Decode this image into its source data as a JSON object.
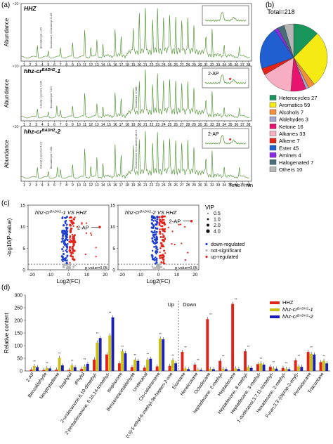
{
  "panel_labels": {
    "a": "(a)",
    "b": "(b)",
    "c": "(c)",
    "d": "(d)"
  },
  "chart_data": [
    {
      "id": "a",
      "type": "line",
      "ylabel": "Abundance",
      "xlabel": "Time / min",
      "x_ticks": [
        1,
        2,
        3,
        4,
        5,
        6,
        7,
        8,
        9,
        10,
        11,
        12,
        13,
        14,
        15,
        16,
        17,
        18,
        19,
        20,
        21,
        22,
        23,
        24,
        25,
        26,
        27,
        28,
        29,
        30,
        31,
        32,
        33,
        34,
        35,
        36,
        37,
        38
      ],
      "xlim": [
        0.5,
        38.5
      ],
      "ylim": [
        0,
        5
      ],
      "exponent_label": "×10⁷",
      "inset_annotation": "2-AP",
      "traces": [
        {
          "name": "HHZ",
          "peaks": [
            [
              3.2,
              1.2
            ],
            [
              5.0,
              0.6
            ],
            [
              7.0,
              0.9
            ],
            [
              9.0,
              1.4
            ],
            [
              11.0,
              2.6
            ],
            [
              12.0,
              1.0
            ],
            [
              13.0,
              1.6
            ],
            [
              14.0,
              1.2
            ],
            [
              16.0,
              2.7
            ],
            [
              17.0,
              1.7
            ],
            [
              19.0,
              2.3
            ],
            [
              20.0,
              3.7
            ],
            [
              21.0,
              4.2
            ],
            [
              22.2,
              2.9
            ],
            [
              23.0,
              3.9
            ],
            [
              24.0,
              3.3
            ],
            [
              25.0,
              3.6
            ],
            [
              26.0,
              3.2
            ],
            [
              27.0,
              2.8
            ],
            [
              28.0,
              3.6
            ],
            [
              29.0,
              2.3
            ],
            [
              31.0,
              1.9
            ],
            [
              32.0,
              2.6
            ],
            [
              34.0,
              1.3
            ],
            [
              36.5,
              1.0
            ]
          ],
          "annotations": [
            "Benzaldehyde 1.2/3",
            "Nonadecane, 6-Nonadecyl 10.6/8"
          ]
        },
        {
          "name": "hhz-cr^{BADH2}-1",
          "peaks": [
            [
              3.2,
              0.9
            ],
            [
              5.0,
              0.5
            ],
            [
              6.4,
              1.1
            ],
            [
              7.0,
              0.7
            ],
            [
              9.0,
              1.1
            ],
            [
              11.0,
              2.4
            ],
            [
              13.0,
              1.3
            ],
            [
              14.0,
              1.0
            ],
            [
              16.0,
              2.5
            ],
            [
              17.0,
              1.6
            ],
            [
              19.0,
              2.5
            ],
            [
              20.0,
              3.1
            ],
            [
              21.0,
              4.3
            ],
            [
              22.2,
              2.6
            ],
            [
              23.0,
              3.6
            ],
            [
              24.0,
              3.2
            ],
            [
              25.0,
              3.4
            ],
            [
              26.0,
              3.0
            ],
            [
              27.0,
              2.7
            ],
            [
              28.0,
              3.4
            ],
            [
              29.0,
              2.2
            ],
            [
              31.0,
              1.6
            ],
            [
              32.0,
              2.5
            ],
            [
              34.0,
              1.1
            ],
            [
              36.5,
              0.9
            ]
          ],
          "annotations": [
            "2-Acetyl-1-pyrroline 5.245",
            "Benzaldehyde 7.203",
            "Nonadecane 10.882"
          ]
        },
        {
          "name": "hhz-cr^{BADH2}-2",
          "peaks": [
            [
              3.2,
              1.1
            ],
            [
              5.0,
              0.6
            ],
            [
              6.5,
              1.0
            ],
            [
              7.0,
              0.8
            ],
            [
              9.0,
              1.3
            ],
            [
              11.0,
              2.9
            ],
            [
              12.0,
              1.2
            ],
            [
              13.0,
              2.0
            ],
            [
              14.0,
              1.4
            ],
            [
              16.0,
              3.4
            ],
            [
              17.0,
              2.0
            ],
            [
              19.0,
              2.8
            ],
            [
              20.0,
              3.3
            ],
            [
              21.0,
              4.2
            ],
            [
              22.2,
              2.8
            ],
            [
              23.0,
              3.8
            ],
            [
              24.0,
              3.3
            ],
            [
              25.0,
              3.5
            ],
            [
              26.0,
              3.1
            ],
            [
              27.0,
              2.8
            ],
            [
              28.0,
              3.6
            ],
            [
              29.0,
              2.3
            ],
            [
              31.0,
              1.8
            ],
            [
              32.0,
              2.6
            ],
            [
              34.0,
              1.2
            ],
            [
              36.5,
              1.0
            ]
          ],
          "annotations": [
            "2-Acetyl-1-pyrroline 5.1-5",
            "Benzaldehyde 7.458",
            "2-Undecanone, 6,10-dimethyl 18.0.5"
          ]
        }
      ]
    },
    {
      "id": "b",
      "type": "pie",
      "title": "Total=218",
      "slices": [
        {
          "label": "Heterocycles",
          "value": 27,
          "color": "#17955a"
        },
        {
          "label": "Aromatics",
          "value": 59,
          "color": "#f5ea14"
        },
        {
          "label": "Alcohols",
          "value": 7,
          "color": "#f18f3b"
        },
        {
          "label": "Aldehydes",
          "value": 3,
          "color": "#a7a5cf"
        },
        {
          "label": "Ketone",
          "value": 16,
          "color": "#e8126f"
        },
        {
          "label": "Alkanes",
          "value": 33,
          "color": "#f8aec2"
        },
        {
          "label": "Alkene",
          "value": 7,
          "color": "#e2231a"
        },
        {
          "label": "Ester",
          "value": 45,
          "color": "#1f5fd1"
        },
        {
          "label": "Amines",
          "value": 4,
          "color": "#8a2be2"
        },
        {
          "label": "Halogenated",
          "value": 7,
          "color": "#4a6d7c"
        },
        {
          "label": "Others",
          "value": 10,
          "color": "#b7b7b7"
        }
      ]
    },
    {
      "id": "c",
      "type": "scatter",
      "xlabel": "Log2(FC)",
      "ylabel": "-log10(P-value)",
      "xlim": [
        -22,
        22
      ],
      "ylim": [
        0,
        15
      ],
      "x_ticks": [
        -20,
        -10,
        0,
        10,
        20
      ],
      "y_ticks": [
        0,
        5,
        10,
        15
      ],
      "threshold_label": "p-value=0.05",
      "threshold_y": 1.3,
      "legend": {
        "vip_title": "VIP",
        "vip_sizes": [
          "0.5",
          "1.0",
          "2.0",
          "4.0"
        ],
        "categories": [
          {
            "label": "down-regulated",
            "color": "#1f3fd0"
          },
          {
            "label": "not-significant",
            "color": "#b5b5b5"
          },
          {
            "label": "up-regulated",
            "color": "#e2231a"
          }
        ]
      },
      "plots": [
        {
          "title": "hhz-cr^{BADH2}-1 VS HHZ",
          "label": "2-AP",
          "label_point": [
            17,
            9.9
          ]
        },
        {
          "title": "hhz-cr^{BADH2}-2 VS HHZ",
          "label": "2-AP",
          "label_point": [
            18,
            11.3
          ]
        }
      ]
    },
    {
      "id": "d",
      "type": "bar",
      "ylabel": "Relative content",
      "ylim": [
        0,
        300
      ],
      "y_ticks": [
        0,
        50,
        100,
        150,
        200,
        250,
        300
      ],
      "section_labels": [
        "Up",
        "Down"
      ],
      "categories": [
        "2-AP",
        "Benzaldehyde",
        "Neophytadiene",
        "Isophytol",
        "iPhytol",
        "2-undecanone,6,10-dimethyl-",
        "2-pentadecanone, 6,10,14-trimethyl-",
        "Isophorone",
        "Benzeneacetaldehyde",
        "Undecanal",
        "Cis-calamenene",
        "(r,s)-5-ethyl-6-methyl-3e-hepten-2-one",
        "Eicosane",
        "Heneicosane",
        "Octadecane",
        "heptadecane, 2-methyl-",
        "Heptadecane",
        "Heptadecane, 8-methyl-",
        "Heptadecane, 3-methyl-",
        "1-dodecanol,3,7,11-trimethyl-",
        "Hexadecane, 2-methyl-",
        "Furan,3,3'-(diprop-2-enyl)-",
        "Pentadecane",
        "Triacontane"
      ],
      "significance": [
        "**",
        "**",
        "**",
        "**",
        "**",
        "**",
        "**",
        "**",
        "**",
        "**",
        "**",
        "**",
        "**",
        "**",
        "**",
        "**",
        "**",
        "**",
        "**",
        "**",
        "**",
        "**",
        "**",
        "**"
      ],
      "series": [
        {
          "name": "HHZ",
          "color": "#e2231a",
          "values": [
            5,
            4,
            5,
            4,
            8,
            45,
            65,
            30,
            15,
            13,
            18,
            20,
            75,
            25,
            205,
            40,
            265,
            78,
            27,
            17,
            12,
            42,
            75,
            35
          ]
        },
        {
          "name": "hhz-cr^{BADH2}-1",
          "color": "#c9c214",
          "values": [
            20,
            12,
            52,
            22,
            18,
            112,
            140,
            78,
            45,
            45,
            128,
            43,
            10,
            5,
            8,
            8,
            10,
            15,
            30,
            10,
            8,
            18,
            67,
            40
          ]
        },
        {
          "name": "hhz-cr^{BADH2}-2",
          "color": "#1b1fb5",
          "values": [
            15,
            10,
            22,
            15,
            28,
            130,
            212,
            70,
            40,
            48,
            125,
            30,
            7,
            4,
            7,
            7,
            8,
            12,
            25,
            9,
            7,
            16,
            65,
            30
          ]
        }
      ]
    }
  ]
}
